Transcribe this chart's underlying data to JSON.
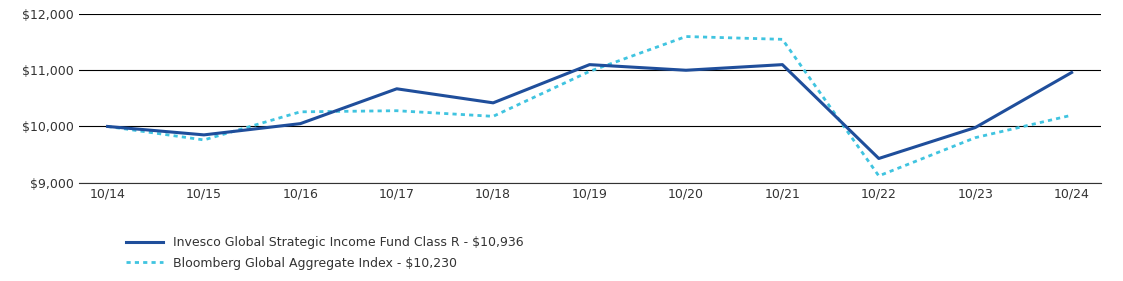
{
  "x_labels": [
    "10/14",
    "10/15",
    "10/16",
    "10/17",
    "10/18",
    "10/19",
    "10/20",
    "10/21",
    "10/22",
    "10/23",
    "10/24"
  ],
  "series1_name": "Invesco Global Strategic Income Fund Class R - $10,936",
  "series1_color": "#1F4E9B",
  "series1_values": [
    10000,
    9850,
    10050,
    10670,
    10420,
    11100,
    11000,
    11100,
    9430,
    9980,
    10960
  ],
  "series2_name": "Bloomberg Global Aggregate Index - $10,230",
  "series2_color": "#40C4E0",
  "series2_values": [
    10000,
    9760,
    10260,
    10280,
    10180,
    10980,
    11600,
    11550,
    9120,
    9800,
    10200
  ],
  "ylim": [
    9000,
    12000
  ],
  "yticks": [
    9000,
    10000,
    11000,
    12000
  ],
  "ytick_labels": [
    "$9,000",
    "$10,000",
    "$11,000",
    "$12,000"
  ],
  "background_color": "#ffffff",
  "grid_color": "#000000"
}
